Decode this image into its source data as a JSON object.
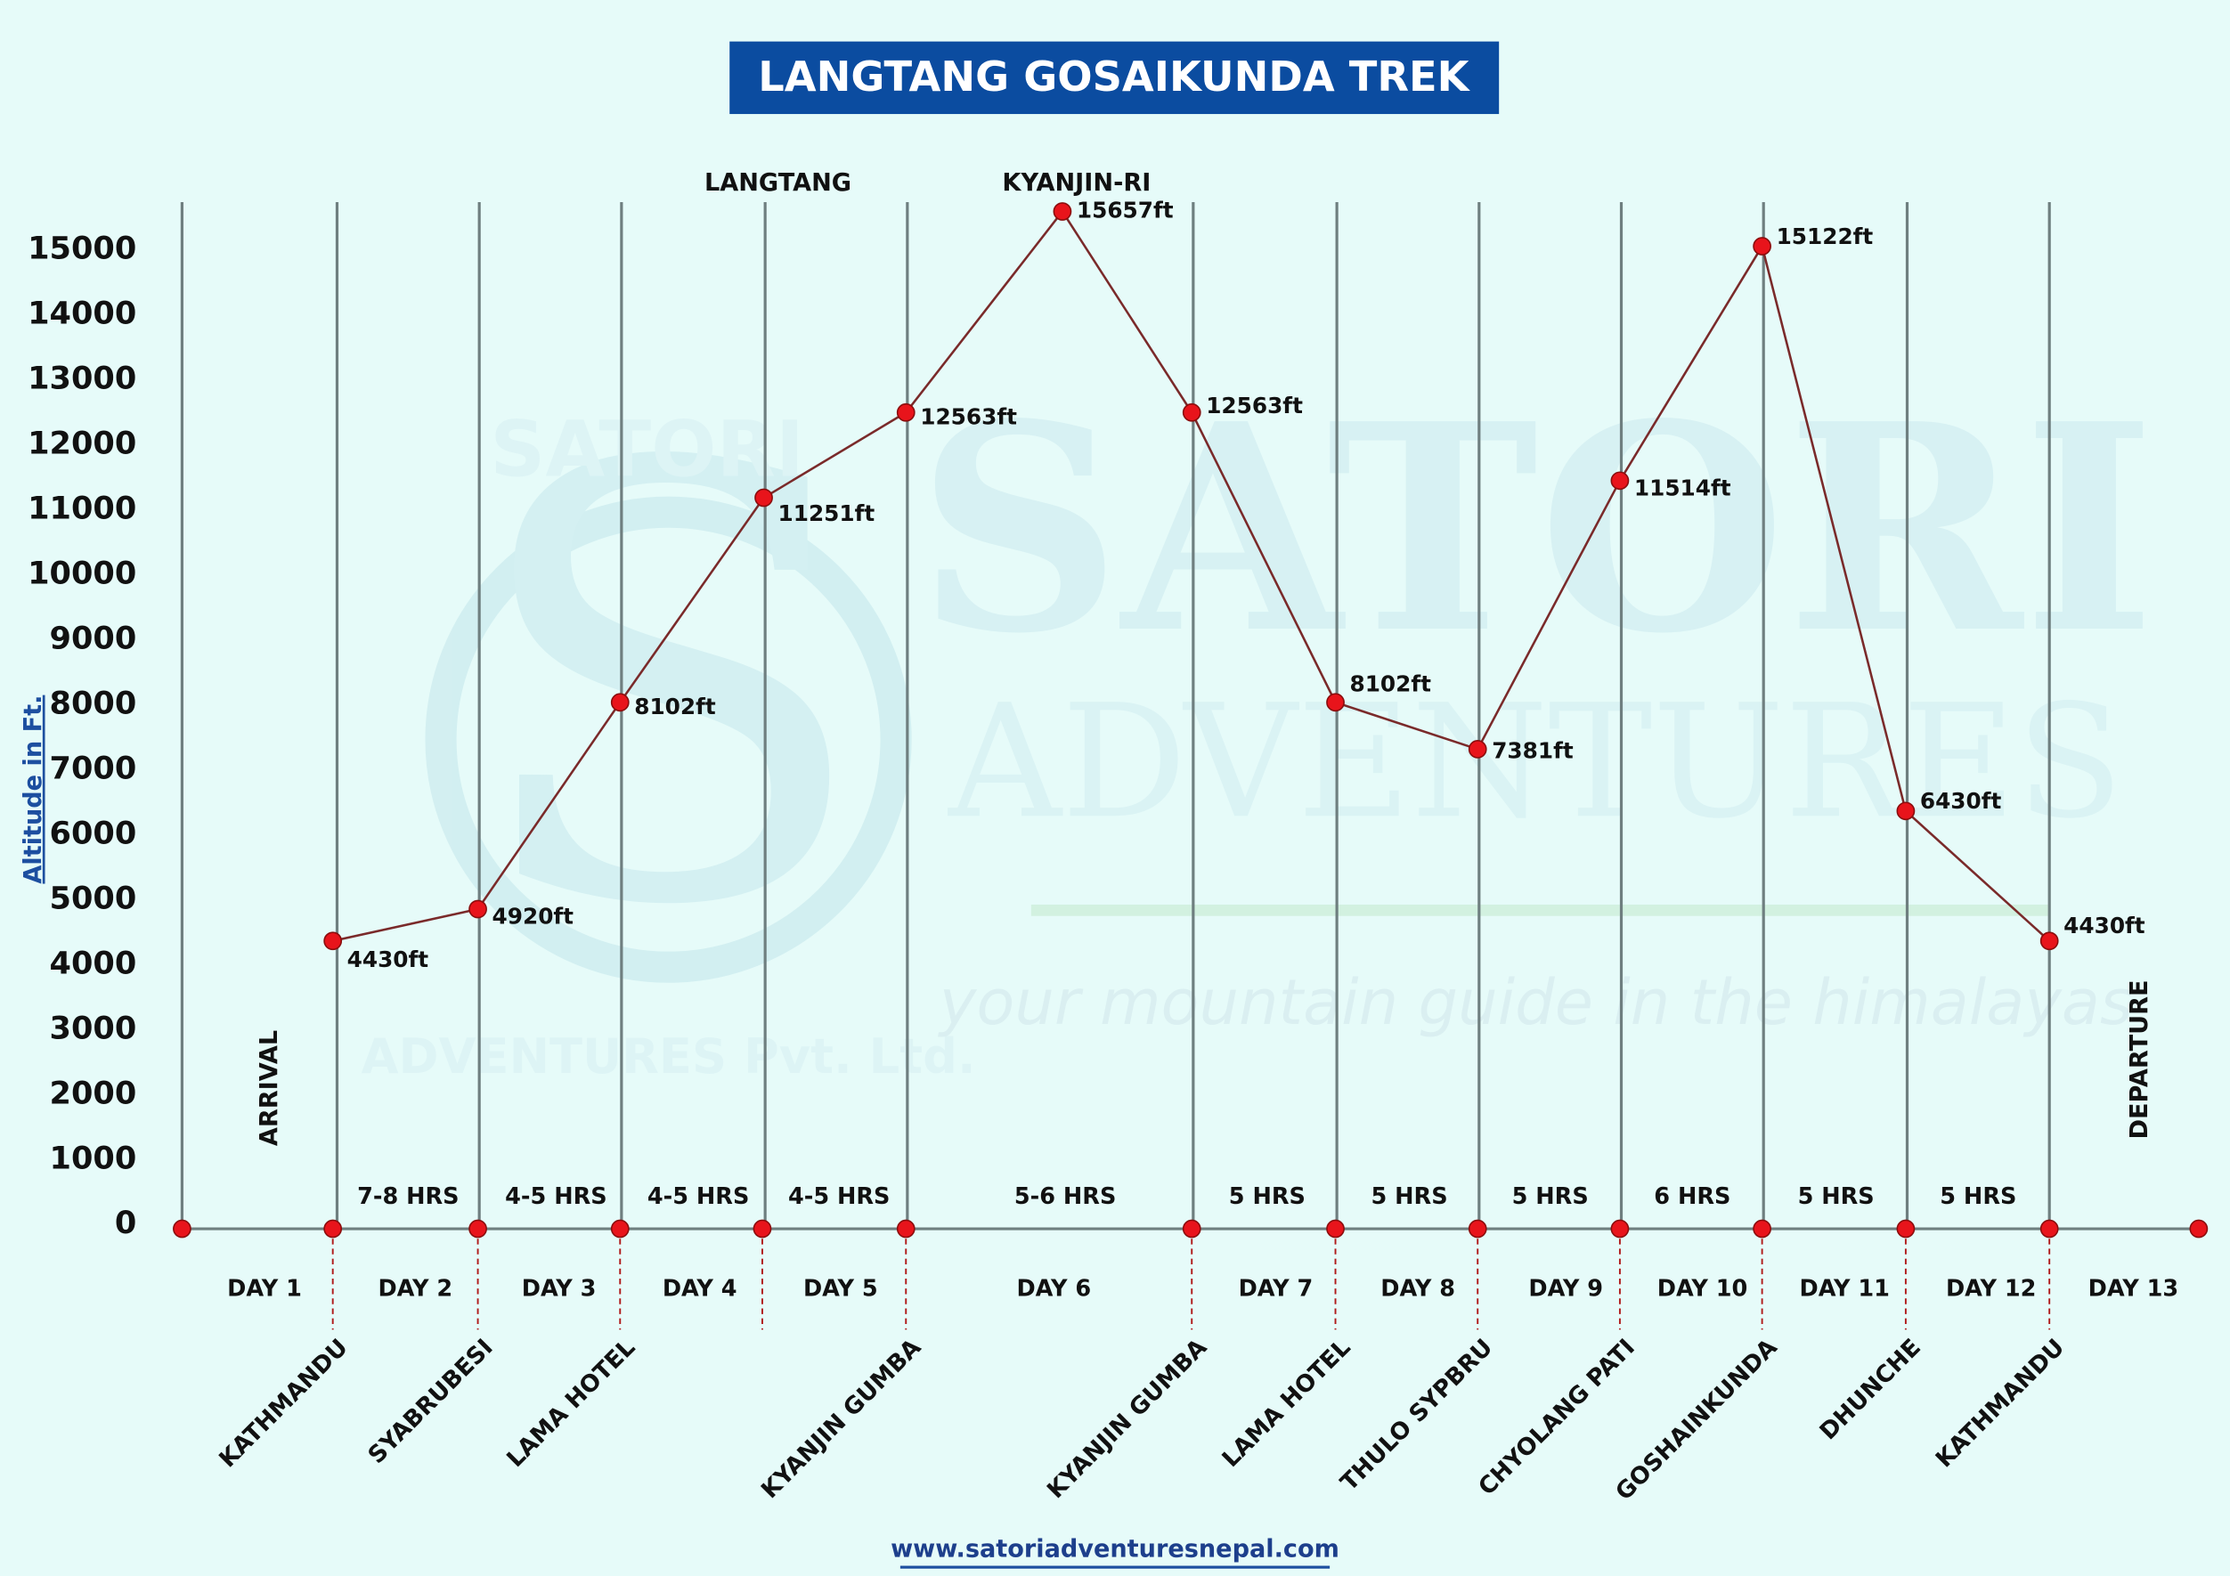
{
  "chart_data": {
    "type": "line",
    "title": "LANGTANG GOSAIKUNDA TREK",
    "y_label": "Altitude in Ft.",
    "ylim": [
      0,
      15800
    ],
    "yticks": [
      0,
      1000,
      2000,
      3000,
      4000,
      5000,
      6000,
      7000,
      8000,
      9000,
      10000,
      11000,
      12000,
      13000,
      14000,
      15000
    ],
    "categories": [
      "KATHMANDU",
      "SYABRUBESI",
      "LAMA HOTEL",
      "LANGTANG",
      "KYANJIN GUMBA",
      "KYANJIN-RI",
      "KYANJIN GUMBA",
      "LAMA HOTEL",
      "THULO SYPBRU",
      "CHYOLANG PATI",
      "GOSHAINKUNDA",
      "DHUNCHE",
      "KATHMANDU"
    ],
    "series": [
      {
        "name": "Altitude",
        "color": "#7a2a2a",
        "marker_color": "#e8141b",
        "values": [
          4430,
          4920,
          8102,
          11251,
          12563,
          15657,
          12563,
          8102,
          7381,
          11514,
          15122,
          6430,
          4430
        ],
        "value_labels": [
          "4430ft",
          "4920ft",
          "8102ft",
          "11251ft",
          "12563ft",
          "15657ft",
          "12563ft",
          "8102ft",
          "7381ft",
          "11514ft",
          "15122ft",
          "6430ft",
          "4430ft"
        ]
      }
    ],
    "days": [
      "DAY 1",
      "DAY 2",
      "DAY 3",
      "DAY 4",
      "DAY 5",
      "DAY 6",
      "DAY 7",
      "DAY 8",
      "DAY 9",
      "DAY 10",
      "DAY 11",
      "DAY 12",
      "DAY 13"
    ],
    "arrival_label": "ARRIVAL",
    "durations": [
      "7-8 HRS",
      "4-5 HRS",
      "4-5 HRS",
      "4-5 HRS",
      "5-6 HRS",
      "5 HRS",
      "5 HRS",
      "5 HRS",
      "6 HRS",
      "5 HRS",
      "5 HRS"
    ],
    "departure_label": "DEPARTURE"
  },
  "watermark": {
    "brand": "SATORI",
    "brand_sub": "ADVENTURES",
    "tagline": "your mountain guide in the himalayas",
    "logo_top": "SATORI",
    "logo_bottom": "ADVENTURES Pvt. Ltd."
  },
  "footer": {
    "url": "www.satoriadventuresnepal.com"
  }
}
